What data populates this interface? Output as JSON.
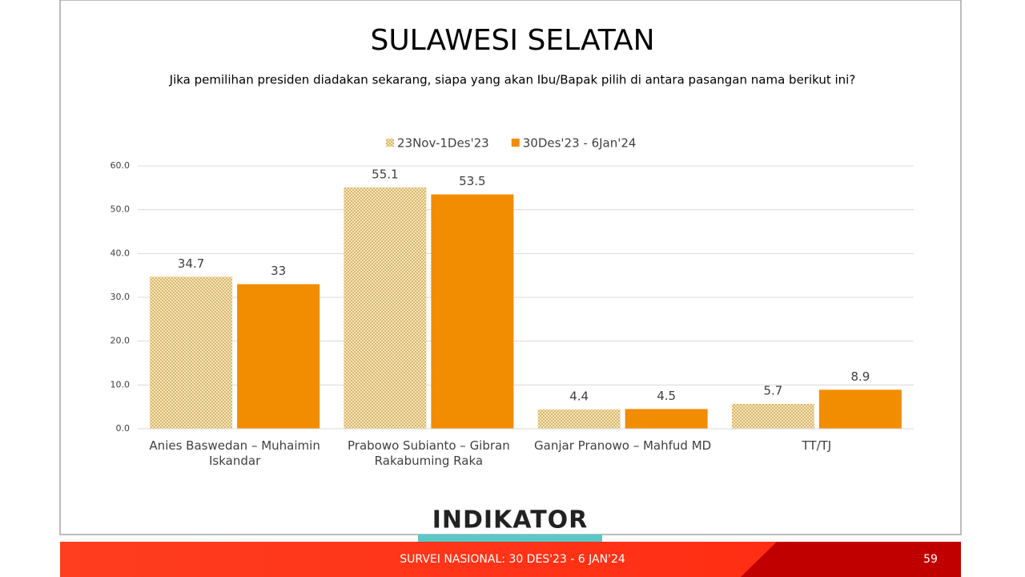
{
  "chart_data": {
    "type": "bar",
    "title": "SULAWESI SELATAN",
    "subtitle": "Jika pemilihan presiden diadakan sekarang, siapa yang akan Ibu/Bapak pilih di antara pasangan nama berikut ini?",
    "categories": [
      "Anies Baswedan – Muhaimin Iskandar",
      "Prabowo Subianto – Gibran Rakabuming Raka",
      "Ganjar Pranowo – Mahfud MD",
      "TT/TJ"
    ],
    "series": [
      {
        "name": "23Nov-1Des'23",
        "color": "#f2dba4",
        "values": [
          34.7,
          55.1,
          4.4,
          5.7
        ]
      },
      {
        "name": "30Des'23 - 6Jan'24",
        "color": "#f28c00",
        "values": [
          33,
          53.5,
          4.5,
          8.9
        ]
      }
    ],
    "ylim": [
      0,
      60
    ],
    "yticks": [
      {
        "value": 0,
        "label": "0.0"
      },
      {
        "value": 10,
        "label": "10.0"
      },
      {
        "value": 20,
        "label": "20.0"
      },
      {
        "value": 30,
        "label": "30.0"
      },
      {
        "value": 40,
        "label": "40.0"
      },
      {
        "value": 50,
        "label": "50.0"
      },
      {
        "value": 60,
        "label": "60.0"
      }
    ],
    "grid": true,
    "legend": "top"
  },
  "logo": "INDIKATOR",
  "footer": {
    "text": "SURVEI NASIONAL: 30 DES'23 - 6 JAN'24",
    "page": "59"
  }
}
